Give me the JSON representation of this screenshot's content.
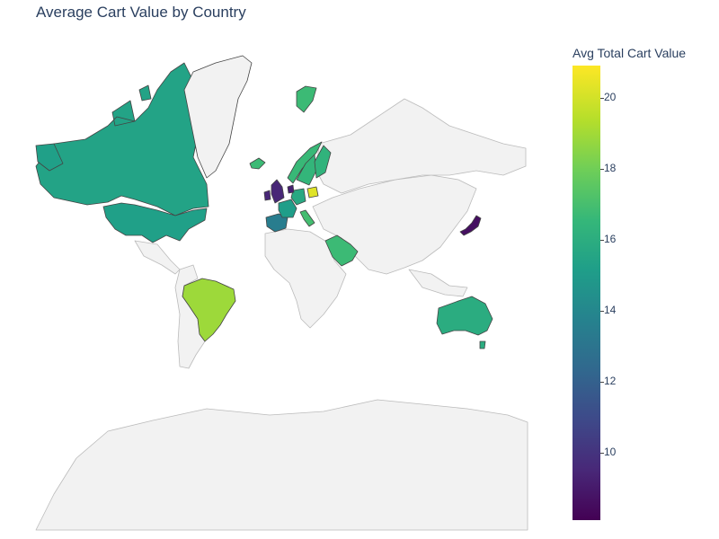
{
  "chart_data": {
    "type": "choropleth",
    "title": "Average Cart Value by Country",
    "colorbar": {
      "title": "Avg Total Cart Value",
      "range": [
        8.1,
        20.9
      ],
      "ticks": [
        "10",
        "12",
        "14",
        "16",
        "18",
        "20"
      ],
      "tick_values": [
        10,
        12,
        14,
        16,
        18,
        20
      ],
      "colorscale": "Viridis"
    },
    "projection": "mercator",
    "regions": [
      {
        "country": "Canada",
        "value": 15.5
      },
      {
        "country": "Greenland",
        "value": null
      },
      {
        "country": "United States",
        "value": 15.3
      },
      {
        "country": "Brazil",
        "value": 19.0
      },
      {
        "country": "Australia",
        "value": 16.0
      },
      {
        "country": "Japan",
        "value": 8.6
      },
      {
        "country": "Saudi Arabia",
        "value": 16.8
      },
      {
        "country": "United Kingdom",
        "value": 9.5
      },
      {
        "country": "Ireland",
        "value": 9.5
      },
      {
        "country": "Spain",
        "value": 13.5
      },
      {
        "country": "France",
        "value": 15.2
      },
      {
        "country": "Germany",
        "value": 15.8
      },
      {
        "country": "Italy",
        "value": 17.0
      },
      {
        "country": "Norway",
        "value": 16.7
      },
      {
        "country": "Sweden",
        "value": 16.5
      },
      {
        "country": "Finland",
        "value": 16.4
      },
      {
        "country": "Iceland",
        "value": 16.8
      },
      {
        "country": "Poland",
        "value": 20.3
      },
      {
        "country": "Netherlands",
        "value": 9.2
      },
      {
        "country": "Svalbard",
        "value": 16.8
      }
    ]
  }
}
